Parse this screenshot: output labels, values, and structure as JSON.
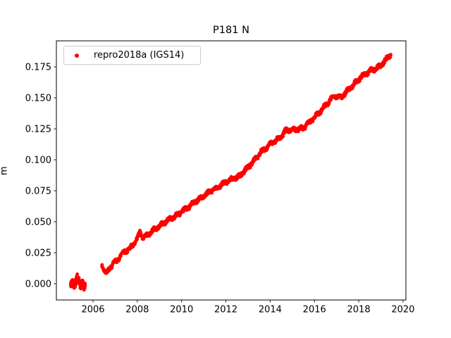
{
  "chart_data": {
    "type": "scatter",
    "title": "P181 N",
    "xlabel": "",
    "ylabel": "m",
    "xlim": [
      2004.345,
      2020.13
    ],
    "ylim": [
      -0.0131,
      0.196
    ],
    "x_ticks": [
      2006,
      2008,
      2010,
      2012,
      2014,
      2016,
      2018,
      2020
    ],
    "x_tick_labels": [
      "2006",
      "2008",
      "2010",
      "2012",
      "2014",
      "2016",
      "2018",
      "2020"
    ],
    "y_ticks": [
      0.0,
      0.025,
      0.05,
      0.075,
      0.1,
      0.125,
      0.15,
      0.175
    ],
    "y_tick_labels": [
      "0.000",
      "0.025",
      "0.050",
      "0.075",
      "0.100",
      "0.125",
      "0.150",
      "0.175"
    ],
    "grid": false,
    "legend": {
      "position": "upper left",
      "label": "repro2018a (IGS14)"
    },
    "colors": {
      "marker": "#ff0000",
      "spine": "#000000",
      "legend_border": "#cccccc",
      "background": "#ffffff"
    },
    "series": [
      {
        "name": "repro2018a (IGS14)",
        "color": "#ff0000",
        "marker": "circle",
        "marker_radius_px": 2.4,
        "segments": [
          {
            "label": "2005-cluster-lobe-1",
            "step_yr": 0.004,
            "noise_m": 0.0026,
            "wobble_m": 0,
            "wobble_period_yr": 1,
            "anchors": [
              [
                2004.99,
                -0.0012
              ],
              [
                2005.08,
                0.0018
              ],
              [
                2005.16,
                -0.002
              ],
              [
                2005.24,
                0.0025
              ],
              [
                2005.29,
                0.0052
              ]
            ]
          },
          {
            "label": "2005-cluster-lobe-2",
            "step_yr": 0.004,
            "noise_m": 0.0026,
            "wobble_m": 0,
            "wobble_period_yr": 1,
            "anchors": [
              [
                2005.36,
                0.003
              ],
              [
                2005.44,
                -0.0022
              ],
              [
                2005.52,
                0.0012
              ],
              [
                2005.6,
                -0.0028
              ],
              [
                2005.65,
                -0.0005
              ]
            ]
          },
          {
            "label": "main-series-2006-2019",
            "step_yr": 0.01,
            "noise_m": 0.0015,
            "wobble_m": 0.0009,
            "wobble_period_yr": 0.35,
            "anchors": [
              [
                2006.4,
                0.015
              ],
              [
                2006.5,
                0.0115
              ],
              [
                2006.62,
                0.0082
              ],
              [
                2006.75,
                0.0125
              ],
              [
                2006.9,
                0.016
              ],
              [
                2007.1,
                0.019
              ],
              [
                2007.35,
                0.0255
              ],
              [
                2007.6,
                0.0275
              ],
              [
                2007.8,
                0.031
              ],
              [
                2008.0,
                0.036
              ],
              [
                2008.12,
                0.0418
              ],
              [
                2008.25,
                0.0372
              ],
              [
                2008.5,
                0.04
              ],
              [
                2008.75,
                0.0435
              ],
              [
                2009.0,
                0.0465
              ],
              [
                2009.44,
                0.052
              ],
              [
                2009.8,
                0.0555
              ],
              [
                2010.0,
                0.058
              ],
              [
                2010.4,
                0.063
              ],
              [
                2010.7,
                0.0675
              ],
              [
                2011.0,
                0.0705
              ],
              [
                2011.3,
                0.0745
              ],
              [
                2011.6,
                0.0775
              ],
              [
                2012.0,
                0.082
              ],
              [
                2012.3,
                0.0845
              ],
              [
                2012.6,
                0.0865
              ],
              [
                2013.0,
                0.094
              ],
              [
                2013.3,
                0.1
              ],
              [
                2013.58,
                0.106
              ],
              [
                2014.0,
                0.1125
              ],
              [
                2014.3,
                0.116
              ],
              [
                2014.54,
                0.119
              ],
              [
                2014.68,
                0.1235
              ],
              [
                2015.0,
                0.1242
              ],
              [
                2015.5,
                0.1255
              ],
              [
                2015.75,
                0.13
              ],
              [
                2016.0,
                0.134
              ],
              [
                2016.45,
                0.1428
              ],
              [
                2016.7,
                0.148
              ],
              [
                2016.9,
                0.152
              ],
              [
                2017.2,
                0.15
              ],
              [
                2017.5,
                0.156
              ],
              [
                2017.8,
                0.1612
              ],
              [
                2018.0,
                0.165
              ],
              [
                2018.3,
                0.1692
              ],
              [
                2018.55,
                0.172
              ],
              [
                2018.8,
                0.1736
              ],
              [
                2019.0,
                0.1762
              ],
              [
                2019.2,
                0.18
              ],
              [
                2019.35,
                0.1832
              ],
              [
                2019.45,
                0.185
              ]
            ]
          }
        ]
      }
    ]
  }
}
